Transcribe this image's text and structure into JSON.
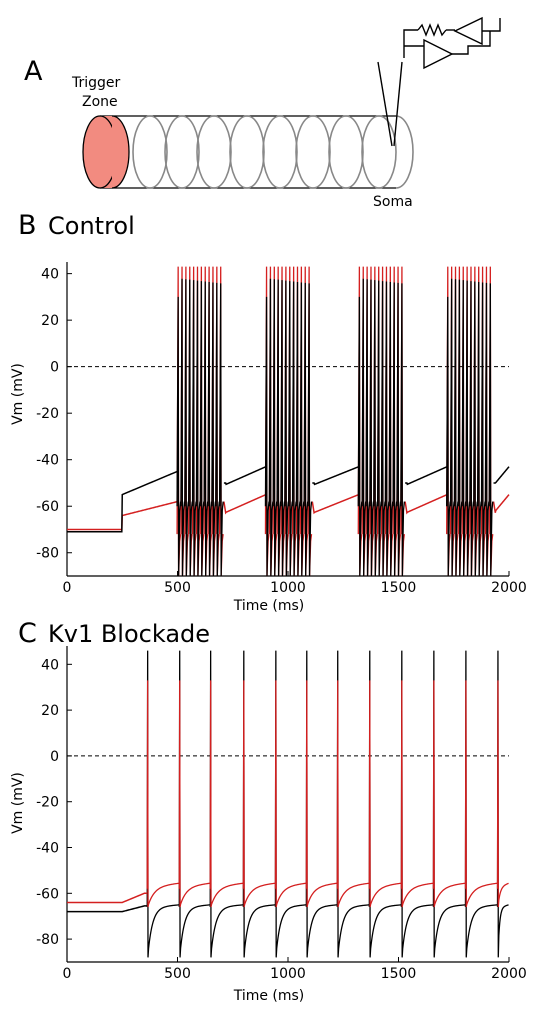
{
  "panel_a": {
    "letter": "A",
    "trigger_label_1": "Trigger",
    "trigger_label_2": "Zone",
    "soma_label": "Soma",
    "trigger_color": "#f28b80"
  },
  "chart_data": [
    {
      "type": "line",
      "panel_letter": "B",
      "title": "Control",
      "xlabel": "Time (ms)",
      "ylabel": "Vm (mV)",
      "xlim": [
        0,
        2000
      ],
      "ylim": [
        -90,
        45
      ],
      "xticks": [
        0,
        500,
        1000,
        1500,
        2000
      ],
      "yticks": [
        40,
        20,
        0,
        -20,
        -40,
        -60,
        -80
      ],
      "reference_line": 0,
      "burst_starts": [
        500,
        900,
        1320,
        1720
      ],
      "burst_duration": 210,
      "spikes_per_burst": 12,
      "series": [
        {
          "color": "#000000",
          "baseline_before": -71,
          "baseline_after": -53,
          "spike_peak": 38
        },
        {
          "color": "#d42020",
          "baseline_before": -70,
          "baseline_after": -65,
          "spike_peak": 43
        }
      ]
    },
    {
      "type": "line",
      "panel_letter": "C",
      "title": "Kv1 Blockade",
      "xlabel": "Time (ms)",
      "ylabel": "Vm (mV)",
      "xlim": [
        0,
        2000
      ],
      "ylim": [
        -90,
        48
      ],
      "xticks": [
        0,
        500,
        1000,
        1500,
        2000
      ],
      "yticks": [
        40,
        20,
        0,
        -20,
        -40,
        -60,
        -80
      ],
      "reference_line": 0,
      "spike_times": [
        365,
        510,
        650,
        800,
        945,
        1085,
        1225,
        1370,
        1515,
        1660,
        1805,
        1950
      ],
      "series": [
        {
          "color": "#000000",
          "baseline_before": -68,
          "spike_peak": 46,
          "trough": -88
        },
        {
          "color": "#d42020",
          "baseline_before": -64,
          "spike_peak": 33,
          "trough": -66
        }
      ]
    }
  ]
}
